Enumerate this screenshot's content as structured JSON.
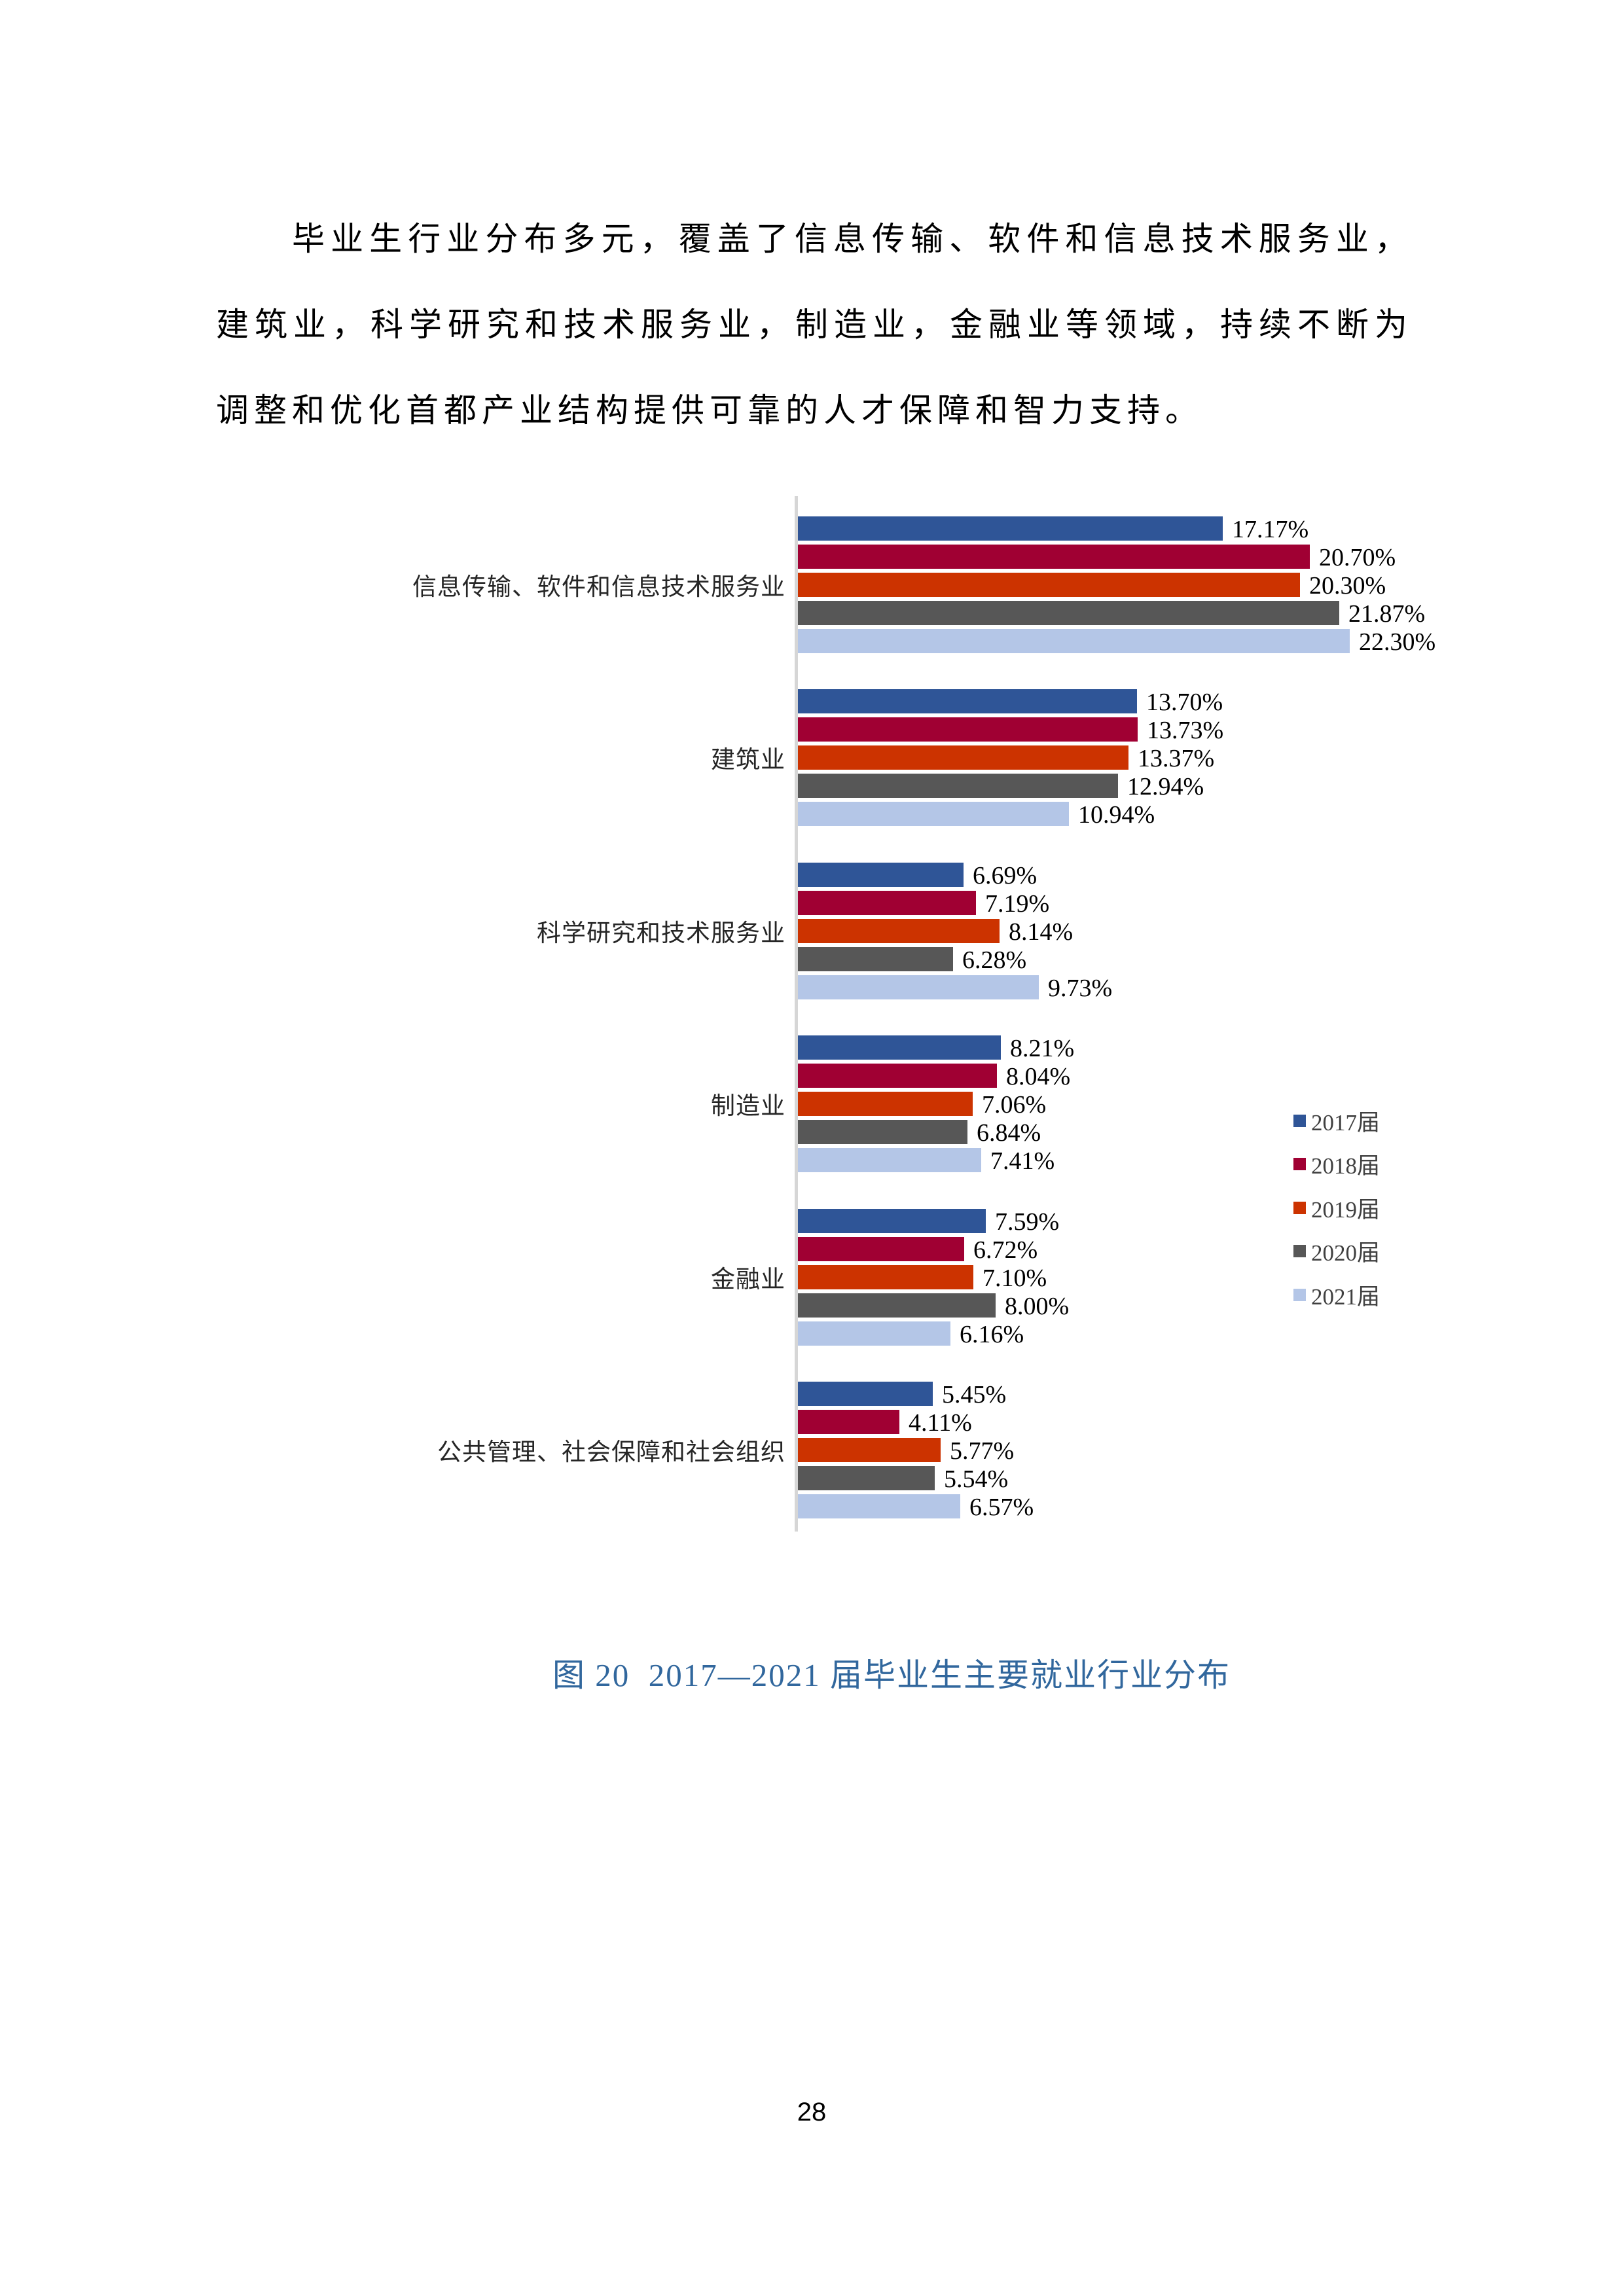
{
  "paragraph": {
    "text": "毕业生行业分布多元，覆盖了信息传输、软件和信息技术服务业，建筑业，科学研究和技术服务业，制造业，金融业等领域，持续不断为调整和优化首都产业结构提供可靠的人才保障和智力支持。"
  },
  "caption": {
    "text": "图 20  2017—2021 届毕业生主要就业行业分布"
  },
  "page": {
    "number": "28"
  },
  "chart_data": {
    "type": "bar",
    "orientation": "horizontal",
    "title": "",
    "xlabel": "",
    "ylabel": "",
    "xlim": [
      0,
      25
    ],
    "grid": false,
    "legend_position": "right",
    "axis_color": "#D6D6D6",
    "value_suffix": "%",
    "categories": [
      "信息传输、软件和信息技术服务业",
      "建筑业",
      "科学研究和技术服务业",
      "制造业",
      "金融业",
      "公共管理、社会保障和社会组织"
    ],
    "series": [
      {
        "name": "2017届",
        "color": "#2F5597",
        "values": [
          17.17,
          13.7,
          6.69,
          8.21,
          7.59,
          5.45
        ]
      },
      {
        "name": "2018届",
        "color": "#A00033",
        "values": [
          20.7,
          13.73,
          7.19,
          8.04,
          6.72,
          4.11
        ]
      },
      {
        "name": "2019届",
        "color": "#CC3300",
        "values": [
          20.3,
          13.37,
          8.14,
          7.06,
          7.1,
          5.77
        ]
      },
      {
        "name": "2020届",
        "color": "#575757",
        "values": [
          21.87,
          12.94,
          6.28,
          6.84,
          8.0,
          5.54
        ]
      },
      {
        "name": "2021届",
        "color": "#B4C6E7",
        "values": [
          22.3,
          10.94,
          9.73,
          7.41,
          6.16,
          6.57
        ]
      }
    ]
  }
}
